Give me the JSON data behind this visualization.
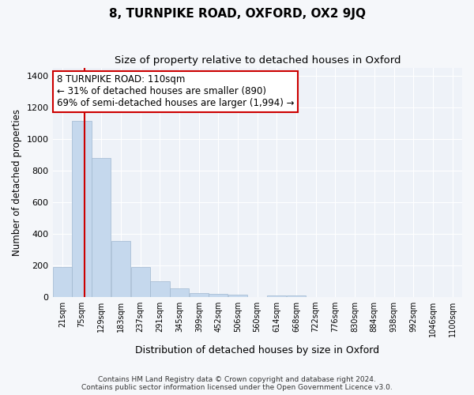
{
  "title": "8, TURNPIKE ROAD, OXFORD, OX2 9JQ",
  "subtitle": "Size of property relative to detached houses in Oxford",
  "xlabel": "Distribution of detached houses by size in Oxford",
  "ylabel": "Number of detached properties",
  "bar_color": "#c5d8ed",
  "bar_edge_color": "#a0b8d0",
  "background_color": "#eef2f8",
  "grid_color": "#ffffff",
  "annotation_line_color": "#cc0000",
  "annotation_box_color": "#cc0000",
  "annotation_text": "8 TURNPIKE ROAD: 110sqm\n← 31% of detached houses are smaller (890)\n69% of semi-detached houses are larger (1,994) →",
  "property_size_sqm": 110,
  "footer_line1": "Contains HM Land Registry data © Crown copyright and database right 2024.",
  "footer_line2": "Contains public sector information licensed under the Open Government Licence v3.0.",
  "bins": [
    21,
    75,
    129,
    183,
    237,
    291,
    345,
    399,
    452,
    506,
    560,
    614,
    668,
    722,
    776,
    830,
    884,
    938,
    992,
    1046,
    1100
  ],
  "bin_labels": [
    "21sqm",
    "75sqm",
    "129sqm",
    "183sqm",
    "237sqm",
    "291sqm",
    "345sqm",
    "399sqm",
    "452sqm",
    "506sqm",
    "560sqm",
    "614sqm",
    "668sqm",
    "722sqm",
    "776sqm",
    "830sqm",
    "884sqm",
    "938sqm",
    "992sqm",
    "1046sqm",
    "1100sqm"
  ],
  "counts": [
    190,
    1115,
    880,
    355,
    190,
    100,
    55,
    25,
    20,
    15,
    0,
    10,
    10,
    0,
    0,
    0,
    0,
    0,
    0,
    0
  ],
  "ylim": [
    0,
    1450
  ],
  "yticks": [
    0,
    200,
    400,
    600,
    800,
    1000,
    1200,
    1400
  ]
}
